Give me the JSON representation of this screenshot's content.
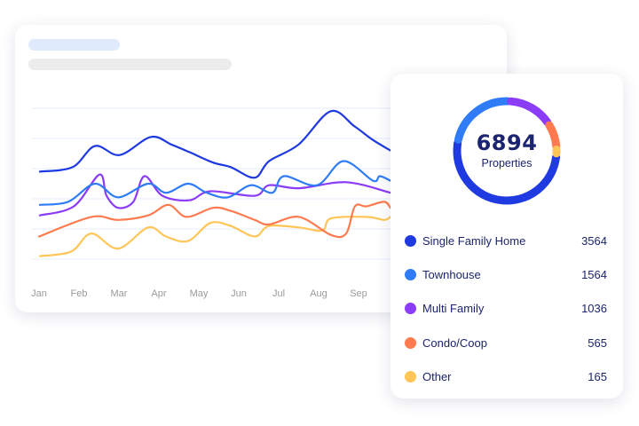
{
  "chart_data": {
    "type": "line",
    "title": "",
    "xlabel": "",
    "ylabel": "",
    "x_tick_labels": [
      "Jan",
      "Feb",
      "Mar",
      "Apr",
      "May",
      "Jun",
      "Jul",
      "Aug",
      "Sep"
    ],
    "ylim": [
      0,
      100
    ],
    "grid_step": 20,
    "grid": true,
    "x_unit": "month index (0 = Jan)",
    "series": [
      {
        "name": "Single Family Home",
        "color": "#1e3ae0",
        "points": [
          [
            0.02,
            58
          ],
          [
            0.84,
            61
          ],
          [
            1.4,
            75
          ],
          [
            2.02,
            69
          ],
          [
            2.8,
            81
          ],
          [
            3.31,
            76
          ],
          [
            3.76,
            71
          ],
          [
            4.36,
            64
          ],
          [
            4.8,
            61
          ],
          [
            5.4,
            54
          ],
          [
            5.76,
            65
          ],
          [
            6.5,
            76
          ],
          [
            7.3,
            98
          ],
          [
            7.9,
            88
          ],
          [
            8.36,
            79
          ],
          [
            8.8,
            72
          ]
        ]
      },
      {
        "name": "Townhouse",
        "color": "#2f7cf6",
        "points": [
          [
            0.02,
            36
          ],
          [
            0.73,
            38
          ],
          [
            1.4,
            50
          ],
          [
            1.98,
            41
          ],
          [
            2.73,
            50
          ],
          [
            3.18,
            44
          ],
          [
            3.73,
            50
          ],
          [
            4.2,
            44
          ],
          [
            4.73,
            41
          ],
          [
            5.31,
            49
          ],
          [
            5.84,
            44
          ],
          [
            6.13,
            55
          ],
          [
            6.96,
            49
          ],
          [
            7.62,
            65
          ],
          [
            8.36,
            52
          ],
          [
            8.53,
            55
          ],
          [
            8.8,
            52
          ]
        ]
      },
      {
        "name": "Multi Family",
        "color": "#8b3cf7",
        "points": [
          [
            0.02,
            29
          ],
          [
            0.87,
            35
          ],
          [
            1.51,
            56
          ],
          [
            1.69,
            42
          ],
          [
            1.98,
            34
          ],
          [
            2.36,
            38
          ],
          [
            2.64,
            55
          ],
          [
            3.09,
            42
          ],
          [
            3.76,
            39
          ],
          [
            4.29,
            45
          ],
          [
            5.4,
            42
          ],
          [
            5.76,
            49
          ],
          [
            6.51,
            47
          ],
          [
            7.69,
            51
          ],
          [
            8.8,
            44
          ]
        ]
      },
      {
        "name": "Condo/Coop",
        "color": "#ff7b4f",
        "points": [
          [
            0,
            15
          ],
          [
            1.31,
            28
          ],
          [
            1.98,
            26
          ],
          [
            2.73,
            29
          ],
          [
            3.24,
            36
          ],
          [
            3.69,
            28
          ],
          [
            4.36,
            34
          ],
          [
            4.8,
            32
          ],
          [
            5.4,
            26
          ],
          [
            5.76,
            23
          ],
          [
            6.51,
            28
          ],
          [
            7.31,
            16
          ],
          [
            7.69,
            17
          ],
          [
            7.91,
            35
          ],
          [
            8.2,
            35
          ],
          [
            8.64,
            38
          ],
          [
            8.8,
            34
          ]
        ]
      },
      {
        "name": "Other",
        "color": "#ffc657",
        "points": [
          [
            0.02,
            2
          ],
          [
            0.8,
            5
          ],
          [
            1.31,
            17
          ],
          [
            1.98,
            7
          ],
          [
            2.73,
            21
          ],
          [
            3.18,
            15
          ],
          [
            3.73,
            12
          ],
          [
            4.29,
            24
          ],
          [
            4.8,
            22
          ],
          [
            5.4,
            15
          ],
          [
            5.76,
            22
          ],
          [
            6.51,
            21
          ],
          [
            7.09,
            19
          ],
          [
            7.31,
            27
          ],
          [
            8.2,
            28
          ],
          [
            8.64,
            26
          ],
          [
            8.8,
            28
          ]
        ]
      }
    ]
  },
  "donut": {
    "total": "6894",
    "label": "Properties",
    "segments": [
      {
        "name": "Single Family Home",
        "value": 3564,
        "display": "3564",
        "color": "#1e3ae0"
      },
      {
        "name": "Townhouse",
        "value": 1564,
        "display": "1564",
        "color": "#2f7cf6"
      },
      {
        "name": "Multi Family",
        "value": 1036,
        "display": "1036",
        "color": "#8b3cf7"
      },
      {
        "name": "Condo/Coop",
        "value": 565,
        "display": "565",
        "color": "#ff7b4f"
      },
      {
        "name": "Other",
        "value": 165,
        "display": "165",
        "color": "#ffc657"
      }
    ]
  },
  "skeleton_colors": {
    "title": "#dfeafd",
    "subtitle": "#ececec",
    "grid": "#e4edfc",
    "axis_text": "#9a9a9a"
  }
}
